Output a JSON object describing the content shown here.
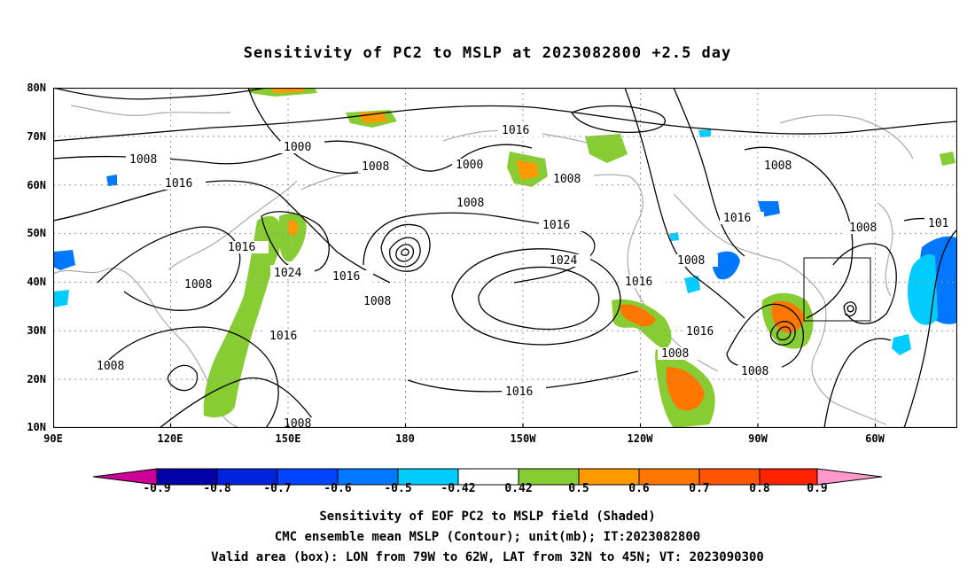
{
  "title": "Sensitivity of PC2 to MSLP at 2023082800 +2.5 day",
  "lat_labels": [
    "80N",
    "70N",
    "60N",
    "50N",
    "40N",
    "30N",
    "20N",
    "10N"
  ],
  "lon_labels": [
    "90E",
    "120E",
    "150E",
    "180",
    "150W",
    "120W",
    "90W",
    "60W"
  ],
  "contour_labels": [
    "1000",
    "1008",
    "1016",
    "1024",
    "1008",
    "1016",
    "1008",
    "1016",
    "1008",
    "1016",
    "1000",
    "1008",
    "1016",
    "1024",
    "1008",
    "1016",
    "1008",
    "1016",
    "1008",
    "1008",
    "1016",
    "1008",
    "1008",
    "1008",
    "101"
  ],
  "colorbar": {
    "labels": [
      "-0.9",
      "-0.8",
      "-0.7",
      "-0.6",
      "-0.5",
      "-0.42",
      "0.42",
      "0.5",
      "0.6",
      "0.7",
      "0.8",
      "0.9"
    ],
    "colors": [
      "#cc0099",
      "#0000aa",
      "#0022dd",
      "#0044ff",
      "#0077ff",
      "#00aaff",
      "#00ccff",
      "#ffffff",
      "#88cc33",
      "#ff9900",
      "#ff7700",
      "#ff5500",
      "#ff2200",
      "#ff0000",
      "#ff99cc"
    ]
  },
  "captions": [
    "Sensitivity of EOF PC2 to MSLP field (Shaded)",
    "CMC ensemble mean MSLP (Contour); unit(mb); IT:2023082800",
    "Valid area (box): LON from 79W to 62W, LAT from 32N to 45N; VT: 2023090300"
  ],
  "colors": {
    "positive_low": "#88cc33",
    "positive_mid": "#ff9900",
    "positive_high": "#ff5500",
    "negative_low": "#00ccff",
    "negative_mid": "#0077ff",
    "coast": "#aaaaaa",
    "contour": "#000000"
  }
}
